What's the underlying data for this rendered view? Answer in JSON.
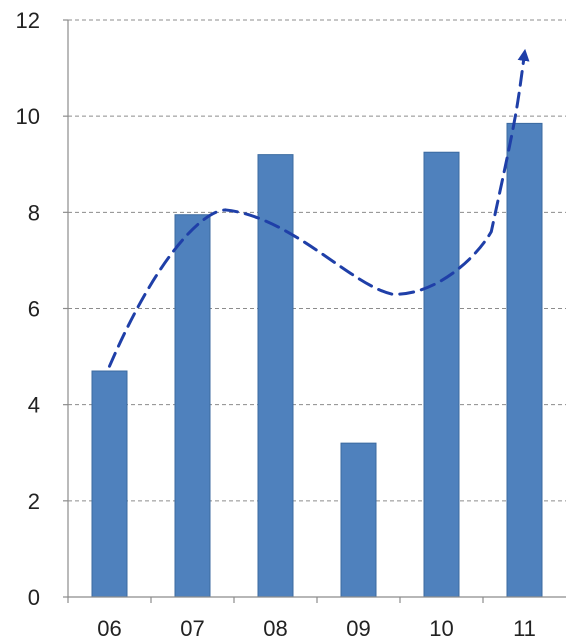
{
  "chart_data": {
    "type": "bar",
    "title": "",
    "xlabel": "",
    "ylabel": "",
    "categories": [
      "06",
      "07",
      "08",
      "09",
      "10",
      "11"
    ],
    "values": [
      4.7,
      7.95,
      9.2,
      3.2,
      9.25,
      9.85
    ],
    "ylim": [
      0,
      12
    ],
    "yticks": [
      "0",
      "2",
      "4",
      "6",
      "8",
      "10",
      "12"
    ],
    "grid": true,
    "legend": "none",
    "trend_line": {
      "style": "dashed",
      "arrow_at_end": true,
      "start": [
        0,
        4.8
      ],
      "end": [
        5,
        11.3
      ]
    },
    "colors": {
      "bar": "#4f81bd",
      "bar_edge": "#3b6aa0",
      "trend": "#1f3fa8",
      "grid": "#8c8c8c"
    }
  }
}
